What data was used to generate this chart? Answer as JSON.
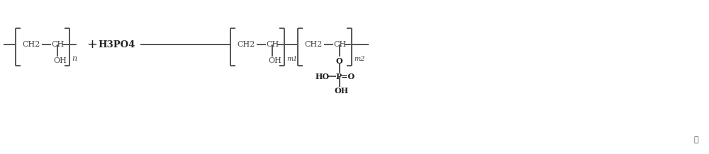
{
  "bg_color": "#ffffff",
  "line_color": "#555555",
  "text_color": "#444444",
  "bold_text_color": "#222222",
  "figsize": [
    10.0,
    2.18
  ],
  "dpi": 100,
  "xlim": [
    0,
    100
  ],
  "ylim": [
    0,
    21.8
  ]
}
